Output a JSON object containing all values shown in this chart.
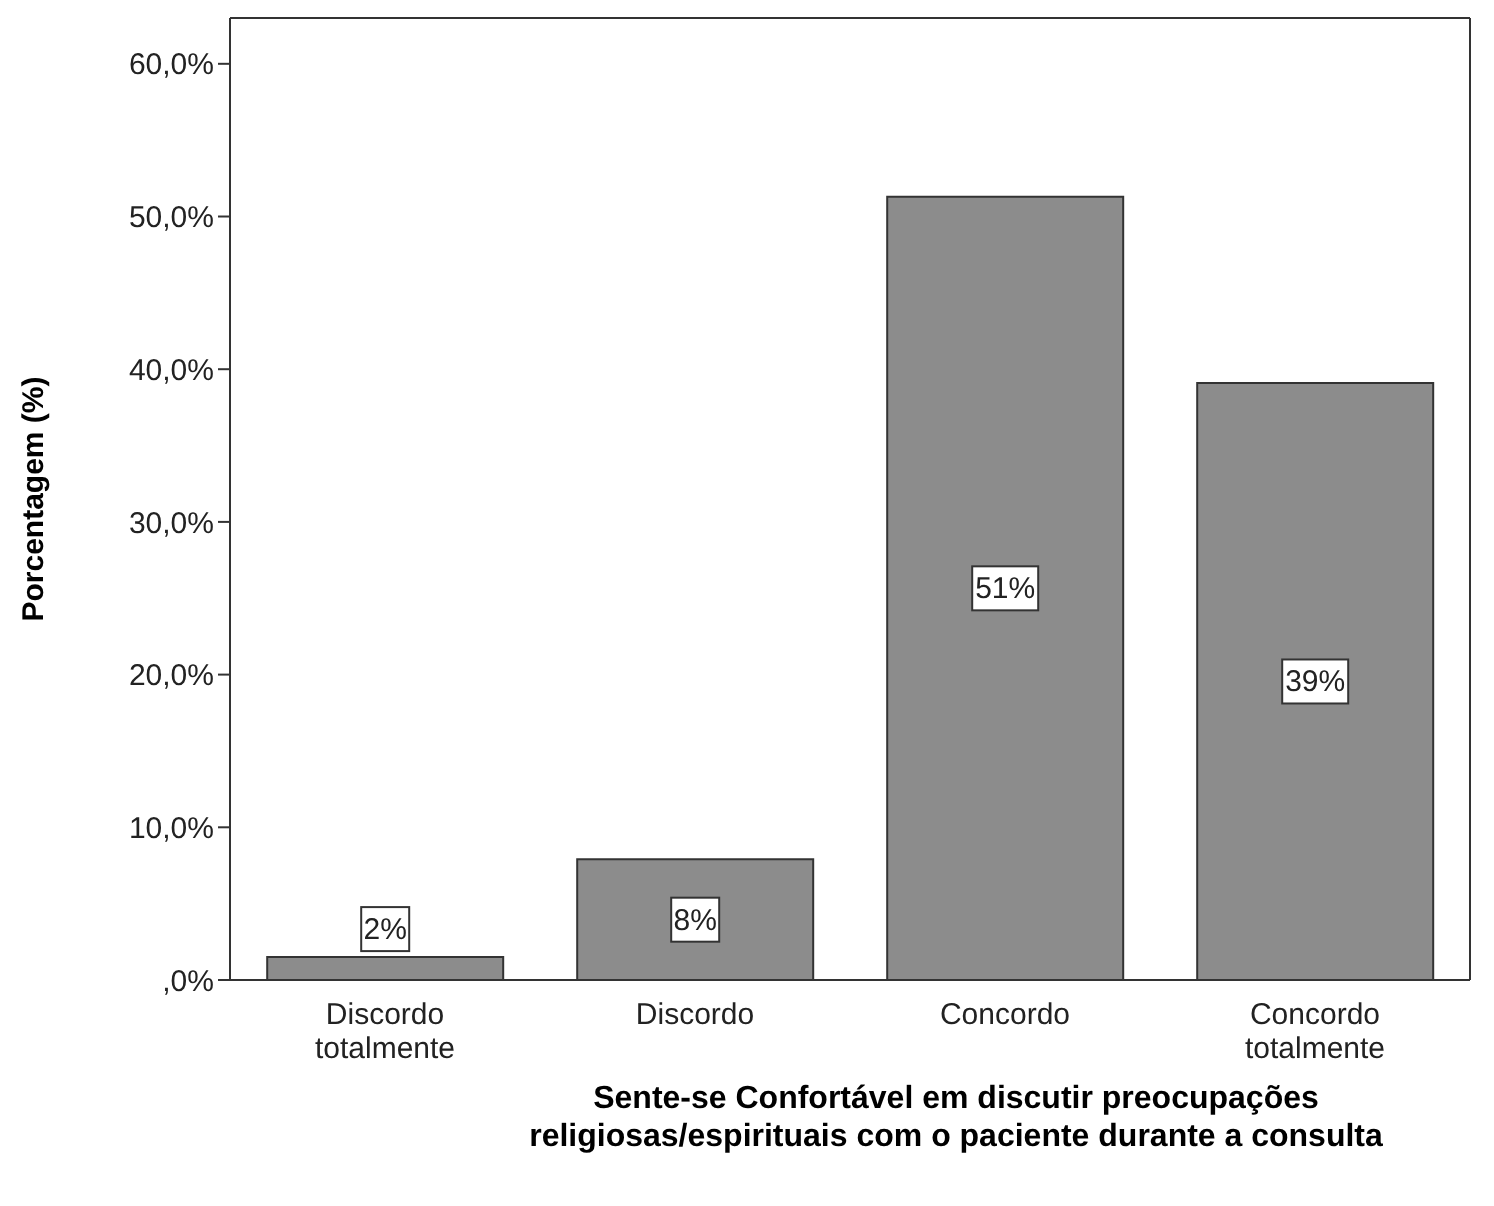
{
  "chart_data": {
    "type": "bar",
    "xlabel": "Sente-se Confortável em discutir preocupações religiosas/espirituais com o paciente durante a consulta",
    "ylabel": "Porcentagem (%)",
    "categories": [
      "Discordo totalmente",
      "Discordo",
      "Concordo",
      "Concordo totalmente"
    ],
    "values": [
      1.5,
      7.9,
      51.3,
      39.1
    ],
    "value_labels": [
      "2%",
      "8%",
      "51%",
      "39%"
    ],
    "color": "#8c8c8c",
    "ylim": [
      0,
      63
    ],
    "yticks": [
      {
        "value": 0,
        "label": ",0%"
      },
      {
        "value": 10,
        "label": "10,0%"
      },
      {
        "value": 20,
        "label": "20,0%"
      },
      {
        "value": 30,
        "label": "30,0%"
      },
      {
        "value": 40,
        "label": "40,0%"
      },
      {
        "value": 50,
        "label": "50,0%"
      },
      {
        "value": 60,
        "label": "60,0%"
      }
    ],
    "grid": false,
    "legend": false
  }
}
